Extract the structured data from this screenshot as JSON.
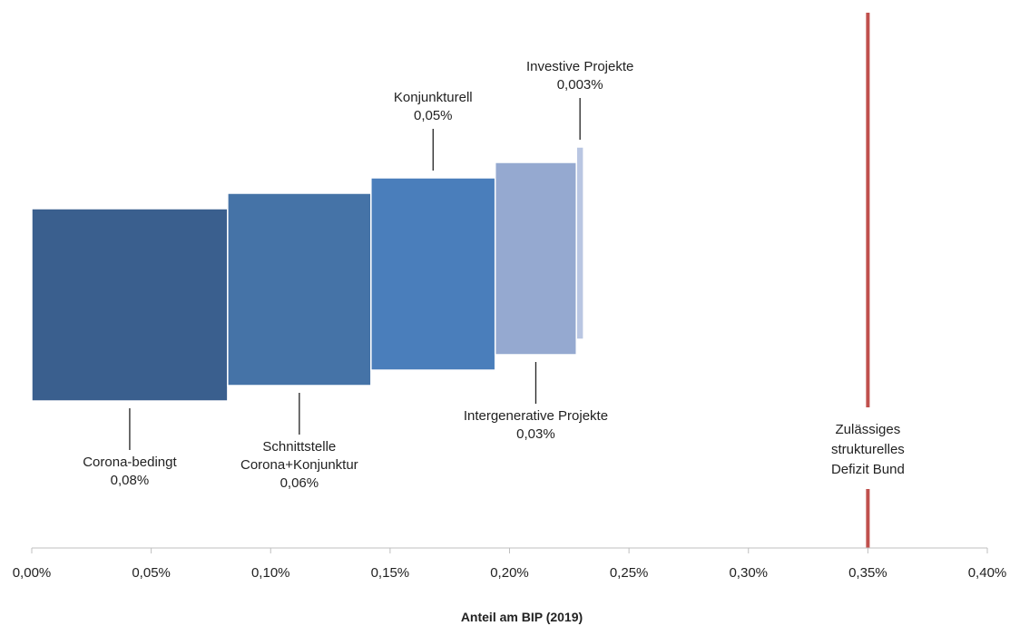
{
  "chart_data": {
    "type": "bar",
    "subtype": "horizontal-waterfall",
    "xlabel": "Anteil am BIP (2019)",
    "xlim": [
      0,
      0.4
    ],
    "x_ticks": [
      0,
      0.05,
      0.1,
      0.15,
      0.2,
      0.25,
      0.3,
      0.35,
      0.4
    ],
    "x_tick_labels": [
      "0,00%",
      "0,05%",
      "0,10%",
      "0,15%",
      "0,20%",
      "0,25%",
      "0,30%",
      "0,35%",
      "0,40%"
    ],
    "grid": false,
    "legend": "none",
    "segments": [
      {
        "label_lines": [
          "Corona-bedingt",
          "0,08%"
        ],
        "start": 0.0,
        "value": 0.082,
        "color": "#3a5f8e",
        "label_side": "below"
      },
      {
        "label_lines": [
          "Schnittstelle",
          "Corona+Konjunktur",
          "0,06%"
        ],
        "start": 0.082,
        "value": 0.06,
        "color": "#4573a7",
        "label_side": "below"
      },
      {
        "label_lines": [
          "Konjunkturell",
          "0,05%"
        ],
        "start": 0.142,
        "value": 0.052,
        "color": "#4a7ebb",
        "label_side": "above"
      },
      {
        "label_lines": [
          "Intergenerative Projekte",
          "0,03%"
        ],
        "start": 0.194,
        "value": 0.034,
        "color": "#95a9d0",
        "label_side": "below"
      },
      {
        "label_lines": [
          "Investive Projekte",
          "0,003%"
        ],
        "start": 0.228,
        "value": 0.003,
        "color": "#b9c6e2",
        "label_side": "above"
      }
    ],
    "reference_line": {
      "value": 0.35,
      "label_lines": [
        "Zulässiges",
        "strukturelles",
        "Defizit Bund"
      ],
      "color": "#c0504d"
    }
  }
}
